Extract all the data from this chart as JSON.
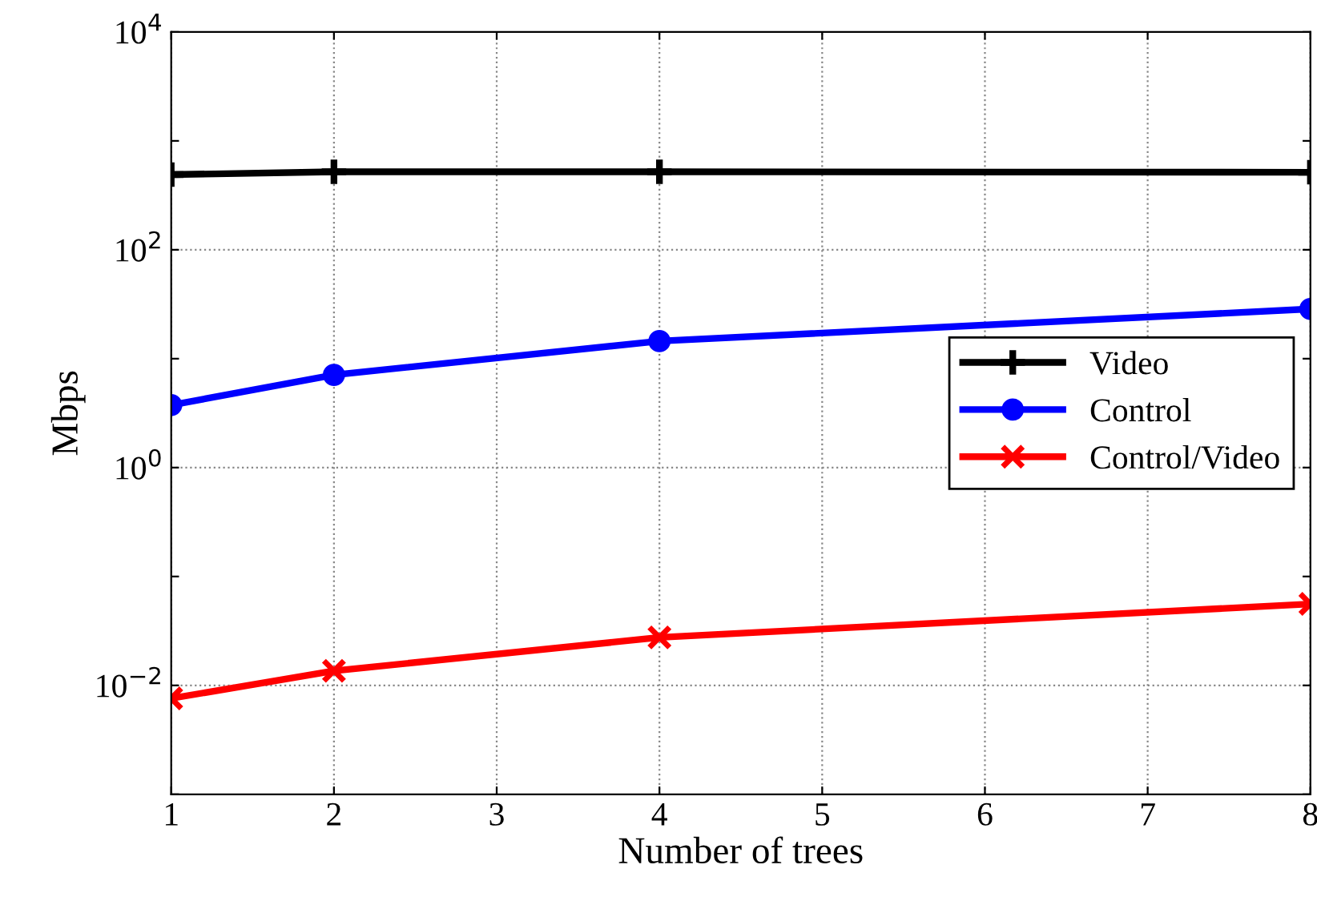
{
  "chart_data": {
    "type": "line",
    "xlabel": "Number of trees",
    "ylabel": "Mbps",
    "x": [
      1,
      2,
      4,
      8
    ],
    "series": [
      {
        "name": "Video",
        "color": "#000000",
        "marker": "plus",
        "values": [
          490,
          520,
          520,
          515
        ]
      },
      {
        "name": "Control",
        "color": "#0000ff",
        "marker": "circle",
        "values": [
          3.75,
          7.1,
          14.5,
          28.6
        ]
      },
      {
        "name": "Control/Video",
        "color": "#ff0000",
        "marker": "cross",
        "values": [
          0.0076,
          0.0136,
          0.0276,
          0.056
        ]
      }
    ],
    "log": "y",
    "xlim": [
      1,
      8
    ],
    "xticks": [
      1,
      2,
      3,
      4,
      5,
      6,
      7,
      8
    ],
    "ylim": [
      0.001,
      10000
    ],
    "yticks": [
      {
        "value": 0.001,
        "label": null
      },
      {
        "value": 0.01,
        "label": "10$^{−2}$"
      },
      {
        "value": 0.1,
        "label": null
      },
      {
        "value": 1,
        "label": "10$^{0}$"
      },
      {
        "value": 10,
        "label": null
      },
      {
        "value": 100,
        "label": "10$^{2}$"
      },
      {
        "value": 1000,
        "label": null
      },
      {
        "value": 10000,
        "label": "10$^{4}$"
      }
    ],
    "grid": true,
    "legend": "right",
    "line_style": "solid"
  }
}
